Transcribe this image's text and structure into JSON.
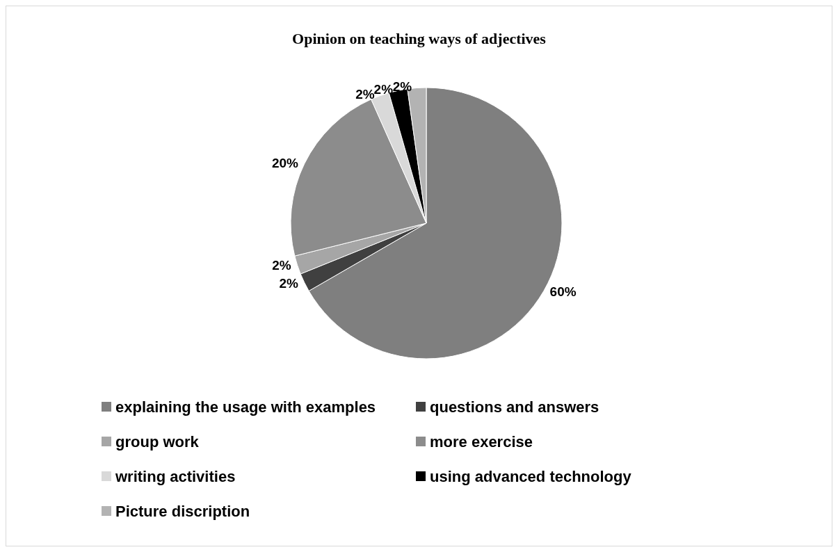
{
  "chart_data": {
    "type": "pie",
    "title": "Opinion on teaching ways of adjectives",
    "categories": [
      "explaining the usage with examples",
      "questions and answers",
      "group work",
      "more exercise",
      "writing activities",
      "using advanced technology",
      "Picture discription"
    ],
    "values": [
      60,
      2,
      2,
      20,
      2,
      2,
      2
    ],
    "value_labels": [
      "60%",
      "2%",
      "2%",
      "20%",
      "2%",
      "2%",
      "2%"
    ],
    "colors": [
      "#7f7f7f",
      "#404040",
      "#a6a6a6",
      "#8c8c8c",
      "#d9d9d9",
      "#000000",
      "#b3b3b3"
    ],
    "legend": "bottom"
  }
}
